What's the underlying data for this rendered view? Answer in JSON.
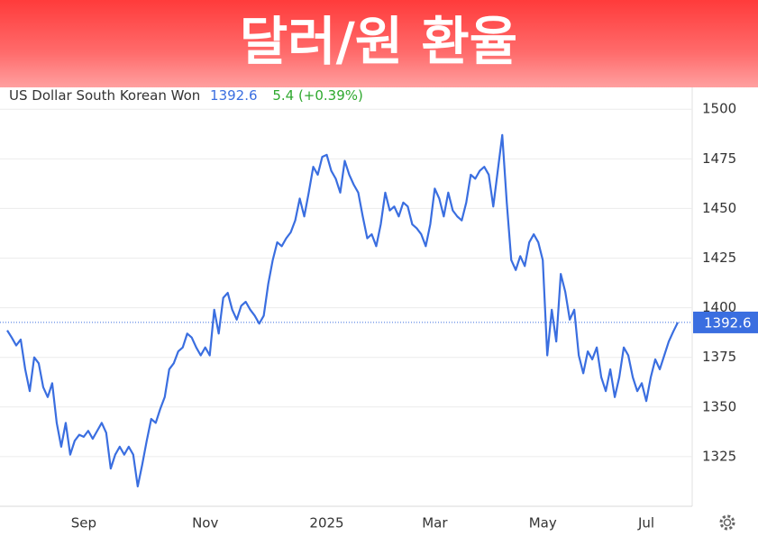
{
  "chart_data": {
    "type": "line",
    "title": "달러/원 환율",
    "series": [
      {
        "name": "US Dollar South Korean Won",
        "color": "#3a6ee0",
        "values": [
          1388.6,
          1385,
          1381,
          1384,
          1369,
          1358,
          1375,
          1372,
          1360,
          1355,
          1362,
          1342,
          1330,
          1342,
          1326,
          1333,
          1336,
          1335,
          1338,
          1334,
          1338,
          1342,
          1337,
          1319,
          1326,
          1330,
          1326,
          1330,
          1326,
          1310,
          1321,
          1333,
          1344,
          1342,
          1349,
          1355,
          1369,
          1372,
          1378,
          1380,
          1387,
          1385,
          1380,
          1376,
          1380,
          1376,
          1399,
          1387,
          1405,
          1407.5,
          1399,
          1394,
          1401,
          1403,
          1399,
          1396,
          1392,
          1396,
          1412,
          1424,
          1433,
          1431,
          1435,
          1438,
          1444,
          1455,
          1446,
          1458,
          1471,
          1467,
          1476,
          1477,
          1469,
          1465,
          1458,
          1474,
          1467,
          1462,
          1458,
          1446,
          1435,
          1437,
          1431,
          1442,
          1458,
          1449,
          1451,
          1446,
          1453,
          1451,
          1442,
          1440,
          1437,
          1431,
          1442,
          1460,
          1455,
          1446,
          1458,
          1449,
          1446,
          1444,
          1453,
          1467,
          1465,
          1469,
          1471,
          1467,
          1451,
          1469,
          1487,
          1453,
          1424,
          1419,
          1426,
          1421,
          1433,
          1437,
          1433,
          1424,
          1376,
          1399,
          1383,
          1417,
          1408,
          1394,
          1399,
          1376,
          1367,
          1378,
          1374,
          1380,
          1365,
          1358,
          1369,
          1355,
          1365,
          1380,
          1376,
          1365,
          1358,
          1362,
          1353,
          1365,
          1374,
          1369,
          1376,
          1383,
          1388,
          1392.6
        ]
      }
    ],
    "categories": [
      null,
      null,
      null,
      null,
      null,
      null,
      null,
      null,
      null,
      null,
      null,
      null,
      null,
      null,
      null,
      null,
      null,
      "Sep",
      null,
      null,
      null,
      null,
      null,
      null,
      null,
      null,
      null,
      null,
      null,
      null,
      null,
      null,
      null,
      null,
      null,
      null,
      null,
      null,
      null,
      null,
      null,
      null,
      null,
      null,
      "Nov",
      null,
      null,
      null,
      null,
      null,
      null,
      null,
      null,
      null,
      null,
      null,
      null,
      null,
      null,
      null,
      null,
      null,
      null,
      null,
      null,
      null,
      null,
      null,
      null,
      null,
      null,
      "2025",
      null,
      null,
      null,
      null,
      null,
      null,
      null,
      null,
      null,
      null,
      null,
      null,
      null,
      null,
      null,
      null,
      null,
      null,
      null,
      null,
      null,
      null,
      null,
      "Mar",
      null,
      null,
      null,
      null,
      null,
      null,
      null,
      null,
      null,
      null,
      null,
      null,
      null,
      null,
      null,
      null,
      null,
      null,
      null,
      null,
      null,
      null,
      null,
      "May",
      null,
      null,
      null,
      null,
      null,
      null,
      null,
      null,
      null,
      null,
      null,
      null,
      null,
      null,
      null,
      null,
      null,
      null,
      null,
      null,
      null,
      null,
      "Jul",
      null,
      null,
      null,
      null,
      null,
      null,
      null
    ],
    "last_value": 1392.6,
    "change": "5.4 (+0.39%)",
    "ylim": [
      1300,
      1511
    ],
    "yticks": [
      1325,
      1350,
      1375,
      1400,
      1425,
      1450,
      1475,
      1500
    ],
    "grid": true
  }
}
